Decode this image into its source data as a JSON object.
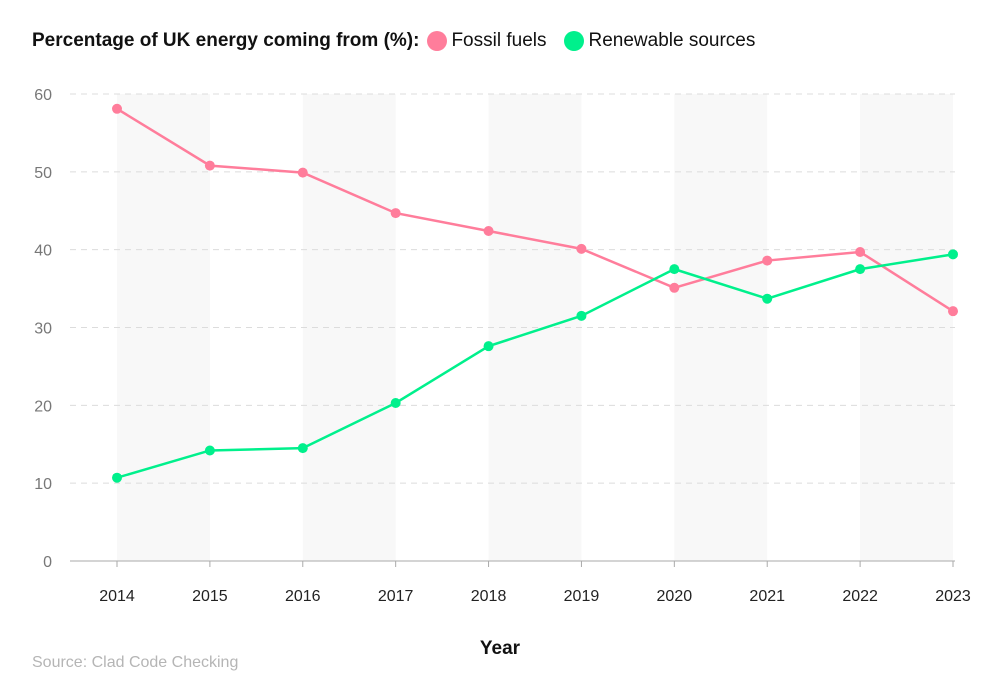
{
  "chart_data": {
    "type": "line",
    "title": "Percentage of UK energy coming from (%):",
    "xlabel": "Year",
    "ylabel": "",
    "categories": [
      "2014",
      "2015",
      "2016",
      "2017",
      "2018",
      "2019",
      "2020",
      "2021",
      "2022",
      "2023"
    ],
    "ylim": [
      0,
      60
    ],
    "yticks": [
      0,
      10,
      20,
      30,
      40,
      50,
      60
    ],
    "grid": true,
    "legend": "top",
    "series": [
      {
        "name": "Fossil fuels",
        "color": "#ff7d9b",
        "values": [
          58.1,
          50.8,
          49.9,
          44.7,
          42.4,
          40.1,
          35.1,
          38.6,
          39.7,
          32.1
        ]
      },
      {
        "name": "Renewable sources",
        "color": "#00f08c",
        "values": [
          10.7,
          14.2,
          14.5,
          20.3,
          27.6,
          31.5,
          37.5,
          33.7,
          37.5,
          39.4
        ]
      }
    ]
  },
  "source": "Source: Clad Code Checking"
}
